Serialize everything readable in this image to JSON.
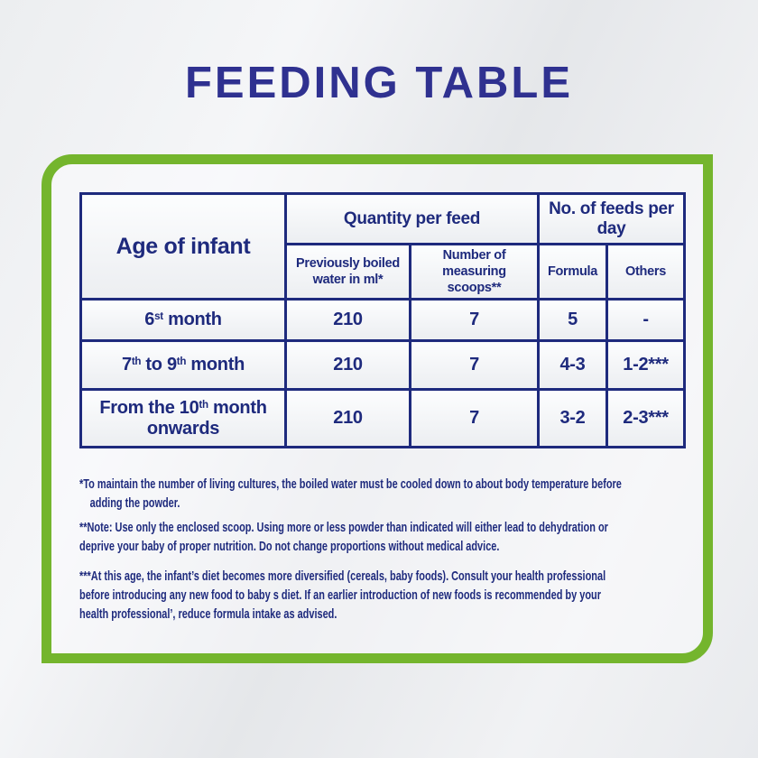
{
  "title": "FEEDING TABLE",
  "table": {
    "corner_header": "Age of infant",
    "group_headers": {
      "quantity": "Quantity per feed",
      "feeds": "No. of feeds per day"
    },
    "sub_headers": {
      "water": "Previously boiled water in ml*",
      "scoops": "Number of measuring scoops**",
      "formula": "Formula",
      "others": "Others"
    },
    "rows": [
      {
        "age": [
          {
            "text": "6"
          },
          {
            "sup": "st"
          },
          {
            "text": " month"
          }
        ],
        "water": "210",
        "scoops": "7",
        "formula": "5",
        "others": "-"
      },
      {
        "age": [
          {
            "text": "7"
          },
          {
            "sup": "th"
          },
          {
            "text": " to 9"
          },
          {
            "sup": "th"
          },
          {
            "text": " month"
          }
        ],
        "water": "210",
        "scoops": "7",
        "formula": "4-3",
        "others": "1-2***"
      },
      {
        "age": [
          {
            "text": "From the 10"
          },
          {
            "sup": "th"
          },
          {
            "text": " month onwards"
          }
        ],
        "water": "210",
        "scoops": "7",
        "formula": "3-2",
        "others": "2-3***"
      }
    ]
  },
  "footnotes": [
    "*To maintain the number of living cultures, the boiled water must be cooled down to about body temperature before\nadding the powder.",
    "**Note: Use only the enclosed scoop. Using more or less powder than indicated will either lead to dehydration or\ndeprive your baby of proper nutrition. Do not change proportions without medical advice.",
    "***At this age, the infant’s diet becomes more diversified (cereals, baby foods). Consult your health professional\nbefore introducing any new food to baby s diet. If an earlier introduction of new foods is recommended by your\nhealth professional’, reduce formula intake as advised."
  ],
  "colors": {
    "title_blue": "#2f3190",
    "table_navy": "#1e2a7d",
    "frame_green": "#74b52d",
    "background": "#e9ebee"
  }
}
